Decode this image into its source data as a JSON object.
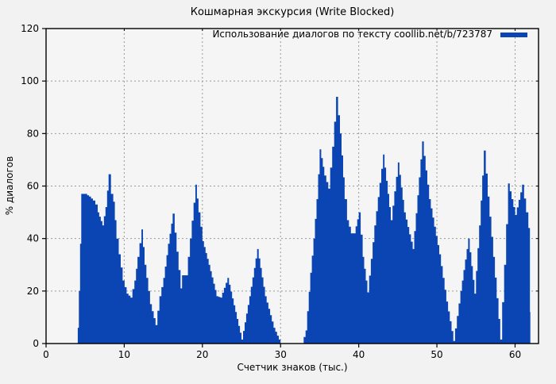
{
  "chart_data": {
    "type": "area",
    "title": "Кошмарная экскурсия (Write Blocked)",
    "legend": "Использование диалогов по тексту coollib.net/b/723787",
    "xlabel": "Счетчик знаков (тыс.)",
    "ylabel": "% диалогов",
    "xlim": [
      0,
      63
    ],
    "ylim": [
      0,
      120
    ],
    "xticks": [
      0,
      10,
      20,
      30,
      40,
      50,
      60
    ],
    "yticks": [
      0,
      20,
      40,
      60,
      80,
      100,
      120
    ],
    "grid": "dashed",
    "legend_position": "top-right-inside",
    "colors": {
      "fill": "#0b45b4",
      "axis": "#000000",
      "grid": "#9a9a9a",
      "page_bg": "#f2f2f2",
      "plot_bg": "#f5f5f5",
      "text": "#000000"
    },
    "points": [
      [
        0,
        0
      ],
      [
        3.95,
        0
      ],
      [
        4.05,
        6
      ],
      [
        4.2,
        20
      ],
      [
        4.35,
        38
      ],
      [
        4.5,
        57
      ],
      [
        5.0,
        57
      ],
      [
        5.5,
        56
      ],
      [
        6.0,
        54.5
      ],
      [
        6.3,
        53
      ],
      [
        6.6,
        50
      ],
      [
        7.2,
        45
      ],
      [
        7.6,
        52
      ],
      [
        8.0,
        64.5
      ],
      [
        8.3,
        57
      ],
      [
        8.6,
        54
      ],
      [
        9.0,
        40
      ],
      [
        9.3,
        34
      ],
      [
        9.8,
        24
      ],
      [
        10.3,
        19
      ],
      [
        10.8,
        17.5
      ],
      [
        11.3,
        24
      ],
      [
        11.7,
        33
      ],
      [
        12.2,
        43.5
      ],
      [
        12.6,
        30
      ],
      [
        13.3,
        15
      ],
      [
        14.0,
        7
      ],
      [
        14.5,
        18
      ],
      [
        15.0,
        25
      ],
      [
        15.6,
        38
      ],
      [
        16.2,
        49.5
      ],
      [
        16.7,
        35
      ],
      [
        17.2,
        21
      ],
      [
        17.4,
        26
      ],
      [
        17.9,
        26
      ],
      [
        18.4,
        40
      ],
      [
        19.1,
        60.5
      ],
      [
        19.5,
        50
      ],
      [
        20.0,
        39
      ],
      [
        20.8,
        30
      ],
      [
        21.8,
        18
      ],
      [
        22.3,
        17.5
      ],
      [
        23.2,
        25
      ],
      [
        24.2,
        12
      ],
      [
        25.0,
        1.5
      ],
      [
        26.0,
        18
      ],
      [
        27.0,
        36
      ],
      [
        28.0,
        18
      ],
      [
        29.1,
        6
      ],
      [
        30.0,
        0
      ],
      [
        32.7,
        0
      ],
      [
        33.2,
        5
      ],
      [
        33.8,
        27
      ],
      [
        34.2,
        40
      ],
      [
        34.6,
        55
      ],
      [
        35.0,
        74
      ],
      [
        35.6,
        64
      ],
      [
        36.1,
        59
      ],
      [
        36.6,
        75
      ],
      [
        37.1,
        94
      ],
      [
        37.6,
        80
      ],
      [
        38.2,
        55
      ],
      [
        38.5,
        47
      ],
      [
        39.0,
        42
      ],
      [
        39.4,
        42
      ],
      [
        40.0,
        50
      ],
      [
        40.5,
        33
      ],
      [
        41.1,
        19.5
      ],
      [
        42.0,
        45
      ],
      [
        43.1,
        72
      ],
      [
        44.1,
        47
      ],
      [
        45.0,
        69
      ],
      [
        45.8,
        50
      ],
      [
        46.9,
        36
      ],
      [
        48.1,
        77
      ],
      [
        49.0,
        55
      ],
      [
        50.3,
        34
      ],
      [
        51.2,
        16
      ],
      [
        52.1,
        1
      ],
      [
        53.0,
        20
      ],
      [
        54.0,
        40
      ],
      [
        54.8,
        19
      ],
      [
        55.4,
        45
      ],
      [
        56.0,
        73.5
      ],
      [
        56.5,
        56
      ],
      [
        57.2,
        33
      ],
      [
        58.1,
        1.5
      ],
      [
        58.6,
        30
      ],
      [
        59.1,
        61
      ],
      [
        60.0,
        49
      ],
      [
        60.9,
        60.5
      ],
      [
        61.4,
        50
      ],
      [
        61.7,
        44
      ],
      [
        61.9,
        12
      ],
      [
        61.95,
        0
      ]
    ]
  }
}
